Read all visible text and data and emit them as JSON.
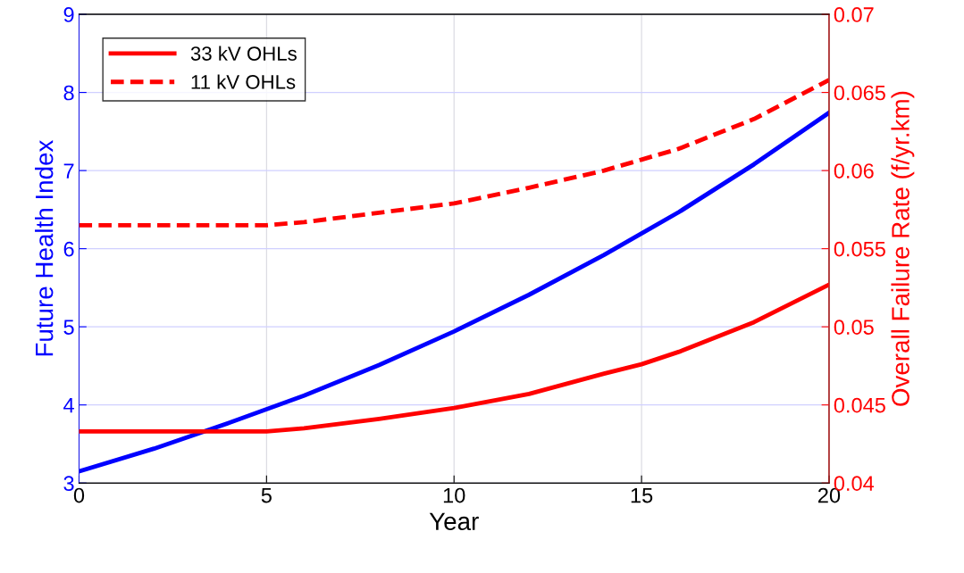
{
  "chart_data": {
    "type": "line",
    "xlabel": "Year",
    "ylabel": "Future Health Index",
    "y2label": "Overall Failure Rate (f/yr.km)",
    "xlim": [
      0,
      20
    ],
    "xticks": [
      0,
      5,
      10,
      15,
      20
    ],
    "ylim": [
      3,
      9
    ],
    "yticks": [
      3,
      4,
      5,
      6,
      7,
      8,
      9
    ],
    "y2lim": [
      0.04,
      0.07
    ],
    "y2ticks": [
      0.04,
      0.045,
      0.05,
      0.055,
      0.06,
      0.065,
      0.07
    ],
    "grid": true,
    "legend": "top left",
    "series": [
      {
        "color": "#0000ff",
        "line_style": "solid",
        "x": [
          0,
          2,
          4,
          6,
          8,
          10,
          12,
          14,
          16,
          18,
          20
        ],
        "values": [
          3.15,
          3.44,
          3.77,
          4.12,
          4.51,
          4.94,
          5.41,
          5.92,
          6.47,
          7.08,
          7.74
        ]
      },
      {
        "name": "33 kV OHLs",
        "axis": "y2",
        "color": "#ff0000",
        "line_style": "solid",
        "x": [
          0,
          5,
          6,
          8,
          10,
          12,
          14,
          15,
          16,
          18,
          20
        ],
        "values": [
          0.0433,
          0.0433,
          0.0435,
          0.0441,
          0.0448,
          0.0457,
          0.047,
          0.0476,
          0.0484,
          0.0503,
          0.0527
        ]
      },
      {
        "name": "11 kV OHLs",
        "axis": "y2",
        "color": "#ff0000",
        "line_style": "dashed",
        "x": [
          0,
          5,
          6,
          8,
          10,
          12,
          14,
          15,
          16,
          18,
          20
        ],
        "values": [
          0.0565,
          0.0565,
          0.0567,
          0.0573,
          0.0579,
          0.0589,
          0.06,
          0.0607,
          0.0614,
          0.0633,
          0.0658
        ]
      }
    ]
  }
}
